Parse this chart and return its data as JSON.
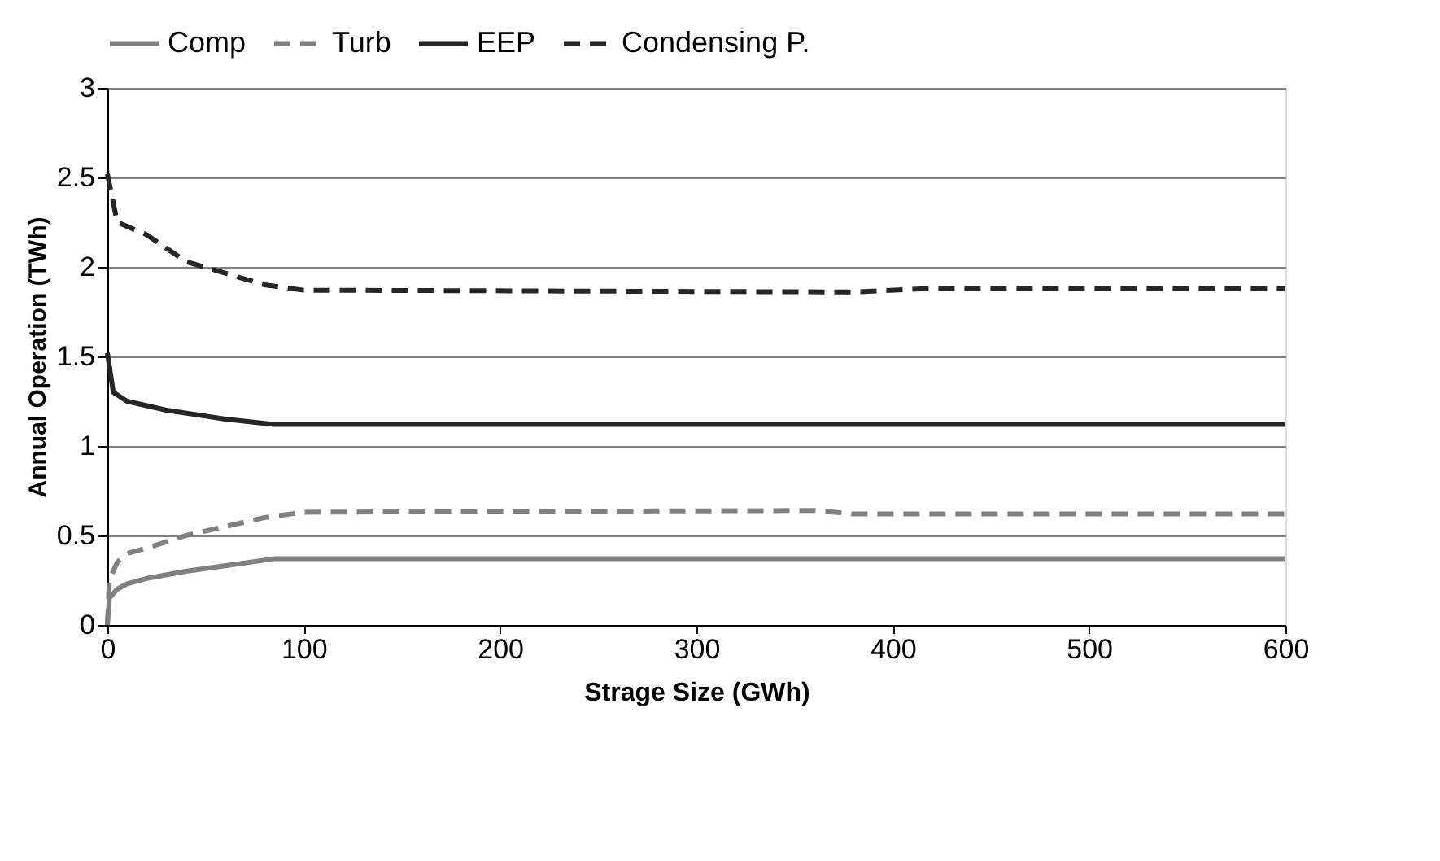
{
  "chart_data": {
    "type": "line",
    "xlabel": "Strage Size (GWh)",
    "ylabel": "Annual Operation (TWh)",
    "xlim": [
      0,
      600
    ],
    "xticks": [
      0,
      100,
      200,
      300,
      400,
      500,
      600
    ],
    "ylim": [
      0,
      3
    ],
    "yticks": [
      0,
      0.5,
      1,
      1.5,
      2,
      2.5,
      3
    ],
    "grid": "y",
    "legend": "top",
    "marker": "none",
    "series": [
      {
        "name": "Comp",
        "color": "#808080",
        "line_style": "solid",
        "x": [
          0,
          1,
          5,
          10,
          20,
          40,
          85,
          600
        ],
        "values": [
          0,
          0.15,
          0.2,
          0.23,
          0.26,
          0.3,
          0.37,
          0.37
        ]
      },
      {
        "name": "Turb",
        "color": "#808080",
        "line_style": "dashed",
        "x": [
          0,
          1,
          5,
          10,
          20,
          40,
          80,
          100,
          360,
          380,
          600
        ],
        "values": [
          0,
          0.25,
          0.35,
          0.4,
          0.43,
          0.5,
          0.6,
          0.63,
          0.64,
          0.62,
          0.62
        ]
      },
      {
        "name": "EEP",
        "color": "#262626",
        "line_style": "solid",
        "x": [
          0,
          3,
          10,
          30,
          60,
          85,
          600
        ],
        "values": [
          1.52,
          1.3,
          1.25,
          1.2,
          1.15,
          1.12,
          1.12
        ]
      },
      {
        "name": "Condensing P.",
        "color": "#262626",
        "line_style": "dashed",
        "x": [
          0,
          5,
          20,
          40,
          80,
          100,
          380,
          420,
          600
        ],
        "values": [
          2.52,
          2.25,
          2.18,
          2.03,
          1.9,
          1.87,
          1.86,
          1.88,
          1.88
        ]
      }
    ]
  }
}
